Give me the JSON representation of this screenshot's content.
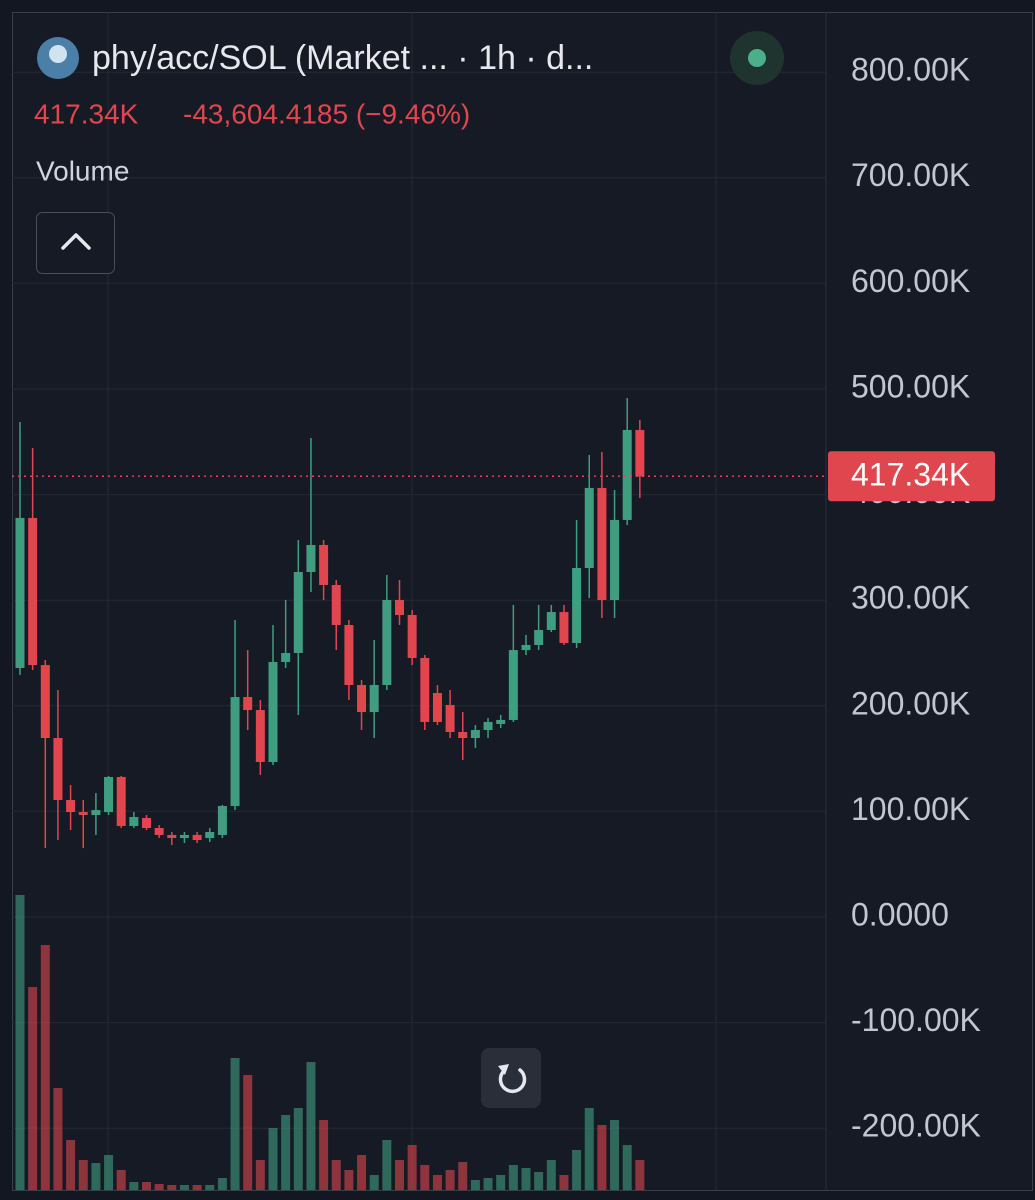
{
  "chart_data": {
    "type": "candlestick",
    "title": "phy/acc/SOL (Market ... · 1h · d...",
    "last": {
      "value": 417340,
      "label": "417.34K"
    },
    "change": "-43,604.4185 (−9.46%)",
    "volume_label": "Volume",
    "up_color": "#3f9e80",
    "down_color": "#e0464e",
    "grid": true,
    "ylim": [
      -258500,
      857000
    ],
    "yticks": [
      {
        "value": 800000,
        "label": "800.00K"
      },
      {
        "value": 700000,
        "label": "700.00K"
      },
      {
        "value": 600000,
        "label": "600.00K"
      },
      {
        "value": 500000,
        "label": "500.00K"
      },
      {
        "value": 400000,
        "label": "400.00K"
      },
      {
        "value": 300000,
        "label": "300.00K"
      },
      {
        "value": 200000,
        "label": "200.00K"
      },
      {
        "value": 100000,
        "label": "100.00K"
      },
      {
        "value": 0,
        "label": "0.0000"
      },
      {
        "value": -100000,
        "label": "-100.00K"
      },
      {
        "value": -200000,
        "label": "-200.00K"
      }
    ],
    "open": [
      235800,
      377900,
      238600,
      169500,
      110800,
      99400,
      96600,
      99400,
      132600,
      86200,
      93800,
      84300,
      77700,
      74800,
      77700,
      74800,
      77700,
      105100,
      208300,
      196000,
      146800,
      241500,
      250000,
      326700,
      352300,
      314400,
      276500,
      219700,
      194100,
      219700,
      300200,
      286000,
      245300,
      212100,
      200800,
      175200,
      169500,
      177100,
      182800,
      186600,
      252800,
      257600,
      271800,
      288800,
      259500,
      330500,
      406300,
      300200,
      376000,
      461200
    ],
    "high": [
      468800,
      444100,
      243400,
      215000,
      125000,
      110800,
      117400,
      133500,
      133500,
      99400,
      96600,
      87100,
      80500,
      80500,
      80500,
      84300,
      106100,
      281300,
      252800,
      205500,
      276500,
      300200,
      357000,
      453600,
      357000,
      319100,
      281300,
      224400,
      262300,
      323900,
      319100,
      290700,
      248100,
      219700,
      215000,
      194100,
      181800,
      188500,
      191300,
      295500,
      267100,
      295500,
      295500,
      295500,
      376000,
      437500,
      440400,
      404400,
      491500,
      470700
    ],
    "low": [
      229200,
      233900,
      65300,
      72900,
      82400,
      65300,
      77700,
      96600,
      84300,
      84300,
      82400,
      74800,
      68200,
      70100,
      70100,
      71000,
      74800,
      101300,
      177100,
      134500,
      143900,
      235800,
      191300,
      307800,
      300200,
      252800,
      205500,
      177100,
      169500,
      215000,
      276500,
      238600,
      177100,
      181800,
      169500,
      148700,
      160000,
      169500,
      179000,
      184700,
      248100,
      252800,
      269900,
      257600,
      254700,
      302100,
      283200,
      283200,
      371200,
      396800
    ],
    "close": [
      377900,
      238600,
      169500,
      110800,
      99400,
      96600,
      101300,
      132600,
      86200,
      94700,
      84300,
      77700,
      74800,
      77700,
      72900,
      80500,
      105100,
      208300,
      196000,
      146800,
      241500,
      250000,
      326700,
      352300,
      314400,
      276500,
      219700,
      194100,
      219700,
      300200,
      286000,
      245300,
      184700,
      184700,
      175200,
      169500,
      177100,
      184700,
      186600,
      252800,
      257600,
      271800,
      288800,
      259500,
      330500,
      406300,
      300200,
      376000,
      461200,
      417340
    ],
    "volume": [
      295,
      203,
      245,
      102,
      50,
      30,
      27,
      35,
      20,
      8,
      8,
      6,
      5,
      5,
      5,
      5,
      12,
      132,
      115,
      30,
      62,
      75,
      82,
      128,
      70,
      30,
      20,
      35,
      15,
      50,
      30,
      45,
      25,
      15,
      20,
      28,
      10,
      12,
      15,
      25,
      22,
      18,
      30,
      15,
      40,
      82,
      65,
      70,
      45,
      30
    ]
  }
}
